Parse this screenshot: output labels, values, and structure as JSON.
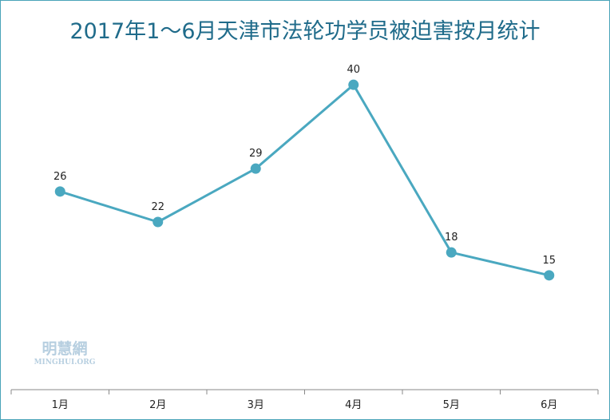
{
  "chart_data": {
    "type": "line",
    "title": "2017年1～6月天津市法轮功学员被迫害按月统计",
    "categories": [
      "1月",
      "2月",
      "3月",
      "4月",
      "5月",
      "6月"
    ],
    "series": [
      {
        "values": [
          26,
          22,
          29,
          40,
          18,
          15
        ]
      }
    ],
    "ylim": [
      0,
      44
    ],
    "grid": false,
    "data_labels": true,
    "colors": {
      "line": "#4aa8c0",
      "marker": "#4aa8c0",
      "title": "#1f6b8a",
      "axis": "#888888"
    }
  },
  "watermark": {
    "text": "明慧網",
    "subtext": "MINGHUI.ORG"
  }
}
